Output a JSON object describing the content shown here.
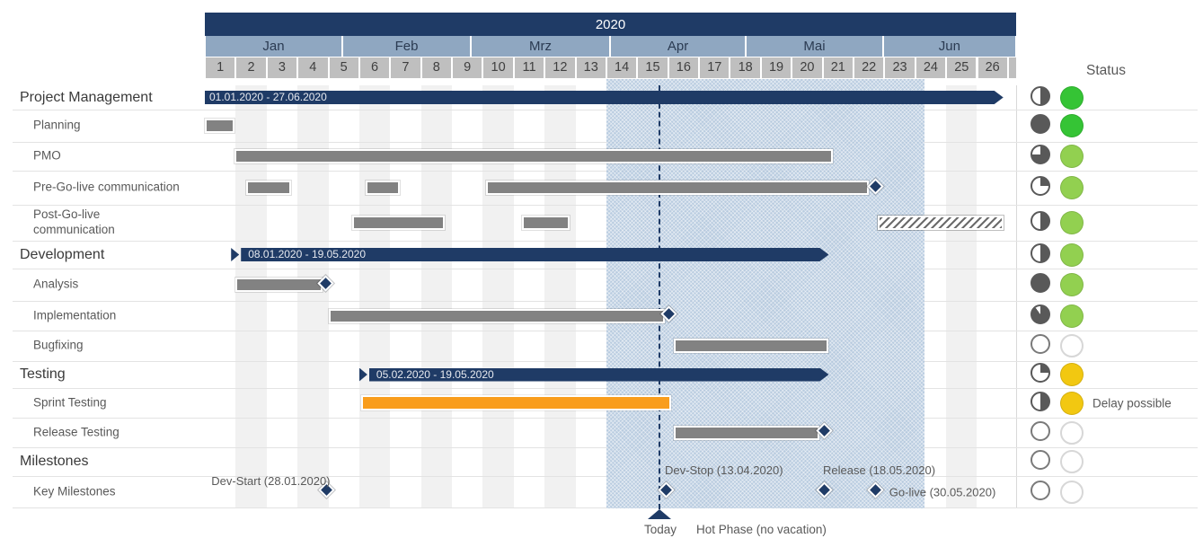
{
  "colors": {
    "navy": "#1F3B66",
    "bar_gray": "#828282",
    "orange": "#F99D1C",
    "green": "#35C435",
    "light_green": "#92D050",
    "yellow": "#F2C811",
    "month_band": "#8FA7C1",
    "week_cell": "#BFBFBF",
    "stripe": "#F1F1F1",
    "row_line": "#E3E3E3",
    "pie_dark": "#595959",
    "hot_phase_fill": "#AFC5DC"
  },
  "chart_data": {
    "type": "gantt",
    "title": "2020",
    "status_header": "Status",
    "calendar": {
      "year_label": "2020",
      "months": [
        {
          "label": "Jan",
          "from_week": 0,
          "to_week": 4.45
        },
        {
          "label": "Feb",
          "from_week": 4.45,
          "to_week": 8.61
        },
        {
          "label": "Mrz",
          "from_week": 8.61,
          "to_week": 13.12
        },
        {
          "label": "Apr",
          "from_week": 13.12,
          "to_week": 17.51
        },
        {
          "label": "Mai",
          "from_week": 17.51,
          "to_week": 21.96
        },
        {
          "label": "Jun",
          "from_week": 21.96,
          "to_week": 26.26
        }
      ],
      "weeks": [
        1,
        2,
        3,
        4,
        5,
        6,
        7,
        8,
        9,
        10,
        11,
        12,
        13,
        14,
        15,
        16,
        17,
        18,
        19,
        20,
        21,
        22,
        23,
        24,
        25,
        26
      ],
      "extra_cell_to_week": 26.26,
      "shaded_weeks": [
        2,
        4,
        6,
        8,
        10,
        12,
        15,
        17,
        19,
        21,
        23,
        25
      ]
    },
    "today": {
      "week": 14.72,
      "label": "Today"
    },
    "hot_phase": {
      "from_week": 13.0,
      "to_week": 23.3,
      "label": "Hot Phase (no vacation)"
    },
    "rows": [
      {
        "name": "Project Management",
        "level": 0,
        "height": 27,
        "progress": 0.5,
        "status": "green",
        "bars": [
          {
            "style": "navy",
            "start": 0,
            "end": 25.85,
            "cap": "flat",
            "label": "01.01.2020 - 27.06.2020"
          }
        ],
        "milestones": []
      },
      {
        "name": "Planning",
        "level": 1,
        "height": 36,
        "progress": 1,
        "status": "green",
        "bars": [
          {
            "style": "gray",
            "start": 0,
            "end": 0.95
          }
        ],
        "milestones": []
      },
      {
        "name": "PMO",
        "level": 1,
        "height": 32,
        "progress": 0.75,
        "status": "light_green",
        "bars": [
          {
            "style": "gray",
            "start": 0.95,
            "end": 20.33
          }
        ],
        "milestones": []
      },
      {
        "name": "Pre-Go-live communication",
        "level": 1,
        "height": 38,
        "progress": 0.25,
        "status": "light_green",
        "bars": [
          {
            "style": "gray",
            "start": 1.35,
            "end": 2.8
          },
          {
            "style": "gray",
            "start": 5.2,
            "end": 6.3
          },
          {
            "style": "gray",
            "start": 9.1,
            "end": 21.5
          }
        ],
        "milestones": [
          {
            "week": 21.78
          }
        ]
      },
      {
        "name": "Post-Go-live communication",
        "level": 1,
        "height": 40,
        "progress": 0.5,
        "status": "light_green",
        "bars": [
          {
            "style": "gray",
            "start": 4.77,
            "end": 7.77
          },
          {
            "style": "gray",
            "start": 10.27,
            "end": 11.8
          },
          {
            "style": "hatched",
            "start": 21.78,
            "end": 25.85
          }
        ],
        "milestones": []
      },
      {
        "name": "Development",
        "level": 0,
        "height": 31,
        "progress": 0.5,
        "status": "light_green",
        "bars": [
          {
            "style": "navy",
            "start": 0.85,
            "end": 20.2,
            "cap": "chevron",
            "label": "08.01.2020 - 19.05.2020"
          }
        ],
        "milestones": []
      },
      {
        "name": "Analysis",
        "level": 1,
        "height": 36,
        "progress": 1,
        "status": "light_green",
        "bars": [
          {
            "style": "gray",
            "start": 1.0,
            "end": 3.8
          }
        ],
        "milestones": [
          {
            "week": 3.98
          }
        ]
      },
      {
        "name": "Implementation",
        "level": 1,
        "height": 33,
        "progress": 0.9,
        "status": "light_green",
        "bars": [
          {
            "style": "gray",
            "start": 4.0,
            "end": 14.9
          }
        ],
        "milestones": [
          {
            "week": 15.07
          }
        ]
      },
      {
        "name": "Bugfixing",
        "level": 1,
        "height": 34,
        "progress": 0,
        "status": "none",
        "bars": [
          {
            "style": "gray",
            "start": 15.18,
            "end": 20.2
          }
        ],
        "milestones": []
      },
      {
        "name": "Testing",
        "level": 0,
        "height": 30,
        "progress": 0.25,
        "status": "yellow",
        "bars": [
          {
            "style": "navy",
            "start": 5.0,
            "end": 20.2,
            "cap": "chevron",
            "label": "05.02.2020 - 19.05.2020"
          }
        ],
        "milestones": []
      },
      {
        "name": "Sprint Testing",
        "level": 1,
        "height": 33,
        "progress": 0.5,
        "status": "yellow",
        "note": "Delay possible",
        "bars": [
          {
            "style": "orange",
            "start": 5.06,
            "end": 15.1
          }
        ],
        "milestones": []
      },
      {
        "name": "Release Testing",
        "level": 1,
        "height": 33,
        "progress": 0,
        "status": "none",
        "bars": [
          {
            "style": "gray",
            "start": 15.18,
            "end": 19.9
          }
        ],
        "milestones": [
          {
            "week": 20.1
          }
        ]
      },
      {
        "name": "Milestones",
        "level": 0,
        "height": 32,
        "progress": 0,
        "status": "none",
        "bars": [],
        "milestones": []
      },
      {
        "name": "Key Milestones",
        "level": 1,
        "height": 35,
        "progress": 0,
        "status": "none",
        "bars": [],
        "milestones": [
          {
            "week": 4.0,
            "label": "Dev-Start (28.01.2020)",
            "label_pos": "above-left"
          },
          {
            "week": 14.98,
            "label": "Dev-Stop (13.04.2020)",
            "label_pos": "above-right"
          },
          {
            "week": 20.1,
            "label": "Release (18.05.2020)",
            "label_pos": "above-right"
          },
          {
            "week": 21.78,
            "label": "Go-live (30.05.2020)",
            "label_pos": "right"
          }
        ]
      }
    ]
  }
}
